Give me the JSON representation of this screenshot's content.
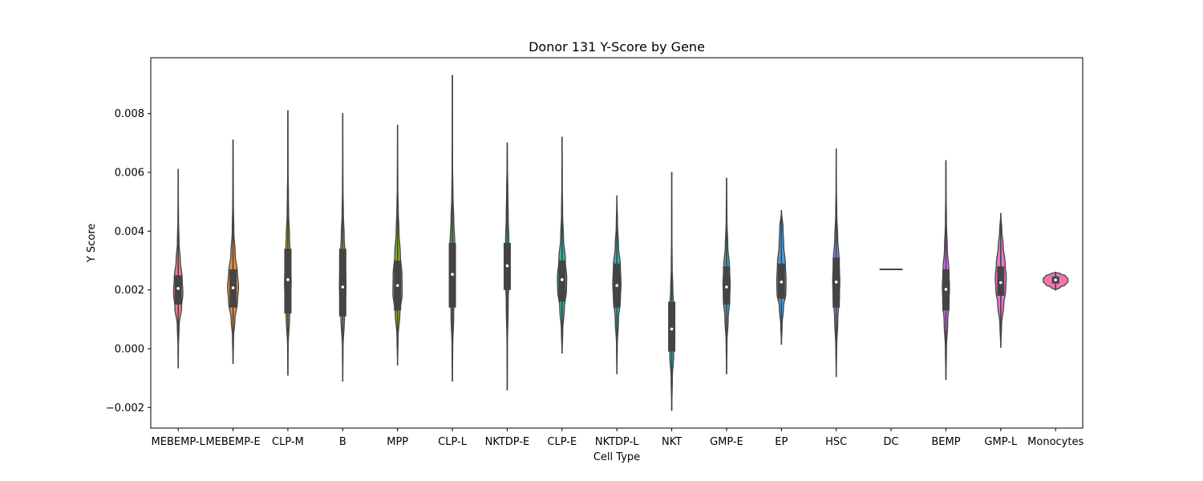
{
  "chart_data": {
    "type": "violin",
    "title": "Donor 131 Y-Score by Gene",
    "xlabel": "Cell Type",
    "ylabel": "Y Score",
    "ylim": [
      -0.0027,
      0.0099
    ],
    "yticks": [
      -0.002,
      0.0,
      0.002,
      0.004,
      0.006,
      0.008
    ],
    "ytick_labels": [
      "−0.002",
      "0.000",
      "0.002",
      "0.004",
      "0.006",
      "0.008"
    ],
    "grid": false,
    "legend": "none",
    "categories": [
      "MEBEMP-L",
      "MEBEMP-E",
      "CLP-M",
      "B",
      "MPP",
      "CLP-L",
      "NKTDP-E",
      "CLP-E",
      "NKTDP-L",
      "NKT",
      "GMP-E",
      "EP",
      "HSC",
      "DC",
      "BEMP",
      "GMP-L",
      "Monocytes"
    ],
    "colors": [
      "#f27f86",
      "#e98e3f",
      "#c79b2e",
      "#a8a52c",
      "#8aaf2b",
      "#44b63e",
      "#3db48a",
      "#39b29f",
      "#3ab0b0",
      "#3bb3bd",
      "#3aa8c8",
      "#4f9fe0",
      "#7e8cf3",
      "#a97ff2",
      "#d372ee",
      "#ee72cc",
      "#f276b2"
    ],
    "series": [
      {
        "name": "MEBEMP-L",
        "min": -0.00065,
        "q1": 0.0015,
        "median": 0.00205,
        "q3": 0.0025,
        "max": 0.0061,
        "max_width": 0.17,
        "profile": [
          [
            -0.00065,
            0.005
          ],
          [
            0.0,
            0.05
          ],
          [
            0.0008,
            0.2
          ],
          [
            0.0014,
            0.72
          ],
          [
            0.0019,
            1.0
          ],
          [
            0.0024,
            0.85
          ],
          [
            0.003,
            0.45
          ],
          [
            0.0036,
            0.18
          ],
          [
            0.0044,
            0.07
          ],
          [
            0.0052,
            0.03
          ],
          [
            0.0061,
            0.005
          ]
        ]
      },
      {
        "name": "MEBEMP-E",
        "min": -0.0005,
        "q1": 0.0014,
        "median": 0.00207,
        "q3": 0.0027,
        "max": 0.0071,
        "max_width": 0.2,
        "profile": [
          [
            -0.0005,
            0.005
          ],
          [
            0.0004,
            0.1
          ],
          [
            0.001,
            0.35
          ],
          [
            0.0016,
            0.82
          ],
          [
            0.0021,
            1.0
          ],
          [
            0.0026,
            0.8
          ],
          [
            0.0032,
            0.4
          ],
          [
            0.004,
            0.15
          ],
          [
            0.005,
            0.06
          ],
          [
            0.006,
            0.03
          ],
          [
            0.0071,
            0.005
          ]
        ]
      },
      {
        "name": "CLP-M",
        "min": -0.0009,
        "q1": 0.0012,
        "median": 0.00235,
        "q3": 0.0034,
        "max": 0.0081,
        "max_width": 0.12,
        "profile": [
          [
            -0.0009,
            0.005
          ],
          [
            0.0,
            0.08
          ],
          [
            0.0012,
            0.55
          ],
          [
            0.0022,
            1.0
          ],
          [
            0.003,
            0.85
          ],
          [
            0.0038,
            0.5
          ],
          [
            0.0046,
            0.22
          ],
          [
            0.0052,
            0.16
          ],
          [
            0.006,
            0.06
          ],
          [
            0.007,
            0.03
          ],
          [
            0.0081,
            0.005
          ]
        ]
      },
      {
        "name": "B",
        "min": -0.0011,
        "q1": 0.0011,
        "median": 0.0021,
        "q3": 0.0034,
        "max": 0.008,
        "max_width": 0.12,
        "profile": [
          [
            -0.0011,
            0.005
          ],
          [
            0.0,
            0.1
          ],
          [
            0.0011,
            0.55
          ],
          [
            0.0021,
            1.0
          ],
          [
            0.003,
            0.85
          ],
          [
            0.0038,
            0.45
          ],
          [
            0.0046,
            0.2
          ],
          [
            0.0055,
            0.08
          ],
          [
            0.0065,
            0.04
          ],
          [
            0.008,
            0.005
          ]
        ]
      },
      {
        "name": "MPP",
        "min": -0.00055,
        "q1": 0.0013,
        "median": 0.00215,
        "q3": 0.003,
        "max": 0.0076,
        "max_width": 0.17,
        "profile": [
          [
            -0.00055,
            0.005
          ],
          [
            0.0004,
            0.12
          ],
          [
            0.0012,
            0.5
          ],
          [
            0.0019,
            1.0
          ],
          [
            0.0025,
            0.95
          ],
          [
            0.0032,
            0.6
          ],
          [
            0.004,
            0.3
          ],
          [
            0.0047,
            0.15
          ],
          [
            0.0055,
            0.06
          ],
          [
            0.0065,
            0.03
          ],
          [
            0.0076,
            0.005
          ]
        ]
      },
      {
        "name": "CLP-L",
        "min": -0.0011,
        "q1": 0.0014,
        "median": 0.00253,
        "q3": 0.0036,
        "max": 0.0093,
        "max_width": 0.1,
        "profile": [
          [
            -0.0011,
            0.005
          ],
          [
            0.0,
            0.12
          ],
          [
            0.0012,
            0.5
          ],
          [
            0.0022,
            0.9
          ],
          [
            0.0028,
            1.0
          ],
          [
            0.0036,
            0.85
          ],
          [
            0.0044,
            0.5
          ],
          [
            0.0052,
            0.22
          ],
          [
            0.0062,
            0.08
          ],
          [
            0.0075,
            0.03
          ],
          [
            0.0093,
            0.005
          ]
        ]
      },
      {
        "name": "NKTDP-E",
        "min": -0.0014,
        "q1": 0.002,
        "median": 0.00282,
        "q3": 0.0036,
        "max": 0.007,
        "max_width": 0.08,
        "profile": [
          [
            -0.0014,
            0.005
          ],
          [
            0.0,
            0.1
          ],
          [
            0.0016,
            0.45
          ],
          [
            0.0024,
            0.85
          ],
          [
            0.003,
            1.0
          ],
          [
            0.0037,
            0.75
          ],
          [
            0.0045,
            0.45
          ],
          [
            0.0054,
            0.28
          ],
          [
            0.0062,
            0.1
          ],
          [
            0.007,
            0.005
          ]
        ]
      },
      {
        "name": "CLP-E",
        "min": -0.00015,
        "q1": 0.0016,
        "median": 0.00235,
        "q3": 0.003,
        "max": 0.0072,
        "max_width": 0.17,
        "profile": [
          [
            -0.00015,
            0.005
          ],
          [
            0.0006,
            0.15
          ],
          [
            0.0014,
            0.5
          ],
          [
            0.002,
            0.95
          ],
          [
            0.0024,
            1.0
          ],
          [
            0.003,
            0.7
          ],
          [
            0.0038,
            0.3
          ],
          [
            0.0046,
            0.12
          ],
          [
            0.0056,
            0.05
          ],
          [
            0.0072,
            0.005
          ]
        ]
      },
      {
        "name": "NKTDP-L",
        "min": -0.00085,
        "q1": 0.0014,
        "median": 0.00215,
        "q3": 0.0029,
        "max": 0.0052,
        "max_width": 0.15,
        "profile": [
          [
            -0.00085,
            0.005
          ],
          [
            0.0001,
            0.1
          ],
          [
            0.001,
            0.4
          ],
          [
            0.0017,
            0.85
          ],
          [
            0.0022,
            1.0
          ],
          [
            0.0028,
            0.85
          ],
          [
            0.0035,
            0.4
          ],
          [
            0.0042,
            0.15
          ],
          [
            0.0052,
            0.005
          ]
        ]
      },
      {
        "name": "NKT",
        "min": -0.0021,
        "q1": -0.0001,
        "median": 0.00067,
        "q3": 0.0016,
        "max": 0.006,
        "max_width": 0.09,
        "profile": [
          [
            -0.0021,
            0.005
          ],
          [
            -0.001,
            0.25
          ],
          [
            -0.0002,
            0.8
          ],
          [
            0.0006,
            1.0
          ],
          [
            0.0014,
            0.8
          ],
          [
            0.002,
            0.45
          ],
          [
            0.0028,
            0.18
          ],
          [
            0.004,
            0.06
          ],
          [
            0.006,
            0.005
          ]
        ]
      },
      {
        "name": "GMP-E",
        "min": -0.00085,
        "q1": 0.0015,
        "median": 0.0021,
        "q3": 0.0028,
        "max": 0.0058,
        "max_width": 0.13,
        "profile": [
          [
            -0.00085,
            0.005
          ],
          [
            0.0002,
            0.12
          ],
          [
            0.001,
            0.45
          ],
          [
            0.0017,
            0.9
          ],
          [
            0.0022,
            1.0
          ],
          [
            0.0028,
            0.8
          ],
          [
            0.0035,
            0.35
          ],
          [
            0.0044,
            0.1
          ],
          [
            0.0058,
            0.005
          ]
        ]
      },
      {
        "name": "EP",
        "min": 0.00015,
        "q1": 0.0017,
        "median": 0.00227,
        "q3": 0.0029,
        "max": 0.0047,
        "max_width": 0.17,
        "profile": [
          [
            0.00015,
            0.005
          ],
          [
            0.0008,
            0.15
          ],
          [
            0.0014,
            0.45
          ],
          [
            0.0019,
            0.95
          ],
          [
            0.0023,
            1.0
          ],
          [
            0.0029,
            0.85
          ],
          [
            0.0035,
            0.5
          ],
          [
            0.0041,
            0.35
          ],
          [
            0.0047,
            0.005
          ]
        ]
      },
      {
        "name": "HSC",
        "min": -0.00095,
        "q1": 0.0014,
        "median": 0.00227,
        "q3": 0.0031,
        "max": 0.0068,
        "max_width": 0.13,
        "profile": [
          [
            -0.00095,
            0.005
          ],
          [
            0.0,
            0.12
          ],
          [
            0.001,
            0.45
          ],
          [
            0.0018,
            0.9
          ],
          [
            0.0023,
            1.0
          ],
          [
            0.003,
            0.8
          ],
          [
            0.0038,
            0.4
          ],
          [
            0.0046,
            0.15
          ],
          [
            0.0056,
            0.05
          ],
          [
            0.0068,
            0.005
          ]
        ]
      },
      {
        "name": "DC",
        "min": 0.0027,
        "q1": 0.0027,
        "median": 0.0027,
        "q3": 0.0027,
        "max": 0.0027,
        "max_width": 0.42,
        "single_value": true,
        "profile": []
      },
      {
        "name": "BEMP",
        "min": -0.00105,
        "q1": 0.0013,
        "median": 0.00202,
        "q3": 0.0027,
        "max": 0.0064,
        "max_width": 0.13,
        "profile": [
          [
            -0.00105,
            0.005
          ],
          [
            0.0,
            0.15
          ],
          [
            0.0009,
            0.5
          ],
          [
            0.0016,
            0.9
          ],
          [
            0.0021,
            1.0
          ],
          [
            0.0027,
            0.8
          ],
          [
            0.0034,
            0.4
          ],
          [
            0.0043,
            0.15
          ],
          [
            0.0054,
            0.05
          ],
          [
            0.0064,
            0.005
          ]
        ]
      },
      {
        "name": "GMP-L",
        "min": 5e-05,
        "q1": 0.0018,
        "median": 0.00225,
        "q3": 0.0028,
        "max": 0.0046,
        "max_width": 0.2,
        "profile": [
          [
            5e-05,
            0.005
          ],
          [
            0.0008,
            0.15
          ],
          [
            0.0015,
            0.55
          ],
          [
            0.002,
            0.9
          ],
          [
            0.0024,
            1.0
          ],
          [
            0.0029,
            0.8
          ],
          [
            0.0035,
            0.45
          ],
          [
            0.004,
            0.2
          ],
          [
            0.0046,
            0.005
          ]
        ]
      },
      {
        "name": "Monocytes",
        "min": 0.002,
        "q1": 0.00222,
        "median": 0.00234,
        "q3": 0.00246,
        "max": 0.0026,
        "max_width": 0.45,
        "profile": [
          [
            0.002,
            0.02
          ],
          [
            0.00208,
            0.35
          ],
          [
            0.00218,
            0.8
          ],
          [
            0.00228,
            1.0
          ],
          [
            0.00238,
            1.0
          ],
          [
            0.00248,
            0.8
          ],
          [
            0.00255,
            0.4
          ],
          [
            0.0026,
            0.02
          ]
        ]
      }
    ]
  }
}
